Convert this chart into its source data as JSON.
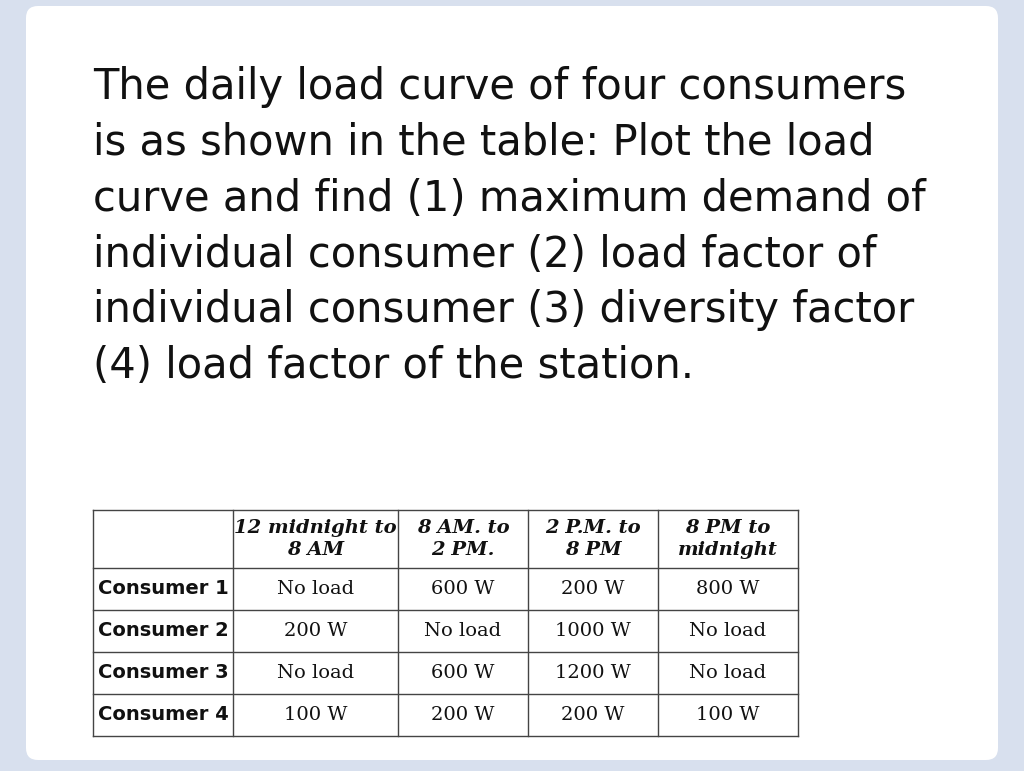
{
  "background_outer": "#d8e0ee",
  "background_card": "#ffffff",
  "title_text": "The daily load curve of four consumers\nis as shown in the table: Plot the load\ncurve and find (1) maximum demand of\nindividual consumer (2) load factor of\nindividual consumer (3) diversity factor\n(4) load factor of the station.",
  "title_fontsize": 30,
  "title_color": "#111111",
  "table_col_headers": [
    "12 midnight to\n8 AM",
    "8 AM. to\n2 PM.",
    "2 P.M. to\n8 PM",
    "8 PM to\nmidnight"
  ],
  "table_row_headers": [
    "Consumer 1",
    "Consumer 2",
    "Consumer 3",
    "Consumer 4"
  ],
  "table_data": [
    [
      "No load",
      "600 W",
      "200 W",
      "800 W"
    ],
    [
      "200 W",
      "No load",
      "1000 W",
      "No load"
    ],
    [
      "No load",
      "600 W",
      "1200 W",
      "No load"
    ],
    [
      "100 W",
      "200 W",
      "200 W",
      "100 W"
    ]
  ],
  "table_header_fontsize": 14,
  "table_data_fontsize": 14,
  "line_color": "#444444",
  "line_width": 1.0
}
